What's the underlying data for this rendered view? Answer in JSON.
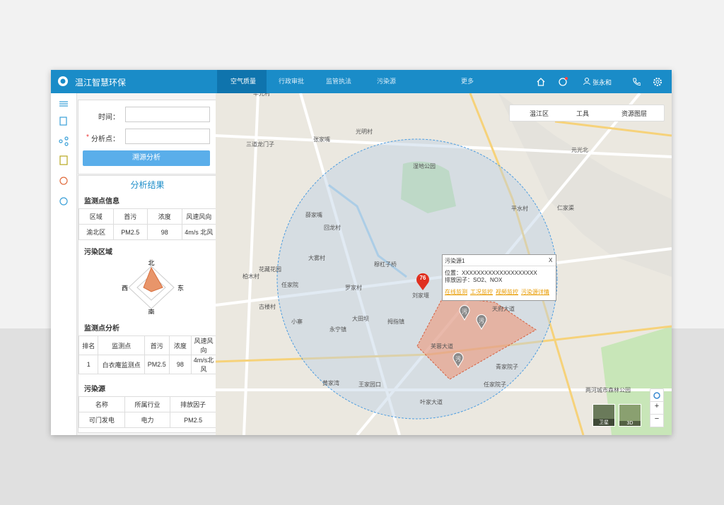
{
  "header": {
    "title": "温江智慧环保",
    "nav": [
      "空气质量",
      "行政审批",
      "监管执法",
      "污染源",
      "更多"
    ],
    "user": "张永和"
  },
  "form": {
    "time_label": "时间：",
    "required_mark": "*",
    "point_label": "分析点：",
    "button": "溯源分析"
  },
  "results": {
    "title": "分析结果",
    "station_info": {
      "title": "监测点信息",
      "columns": [
        "区域",
        "首污",
        "浓度",
        "风速风向"
      ],
      "rows": [
        [
          "渝北区",
          "PM2.5",
          "98",
          "4m/s 北风"
        ]
      ]
    },
    "area": {
      "title": "污染区域",
      "north": "北",
      "east": "东",
      "south": "南",
      "west": "西"
    },
    "station_analysis": {
      "title": "监测点分析",
      "columns": [
        "排名",
        "监测点",
        "首污",
        "浓度",
        "风速风向"
      ],
      "rows": [
        [
          "1",
          "白衣庵监测点",
          "PM2.5",
          "98",
          "4m/s北风"
        ]
      ]
    },
    "sources": {
      "title": "污染源",
      "columns": [
        "名称",
        "所属行业",
        "排放因子"
      ],
      "rows": [
        [
          "可门发电",
          "电力",
          "PM2.5"
        ]
      ]
    }
  },
  "map": {
    "toolbar": [
      "温江区",
      "工具",
      "资源图层"
    ],
    "marker": "76",
    "source_pins": [
      "污",
      "污",
      "污"
    ],
    "popup": {
      "title": "污染源1",
      "close": "X",
      "location": "位置：XXXXXXXXXXXXXXXXXXXX",
      "factor": "排放因子：SO2、NOX",
      "links": [
        "在线监测",
        "工况监控",
        "视频监控",
        "污染源详情"
      ]
    },
    "layers": [
      "卫星",
      "3D"
    ],
    "zoom": [
      "+",
      "−"
    ],
    "labels": [
      "华光村",
      "三道龙门子",
      "张家嘴",
      "光明村",
      "湿地公园",
      "薛家嘴",
      "回龙村",
      "大雾村",
      "穆杠子桥",
      "罗家村",
      "刘家堰",
      "任家院",
      "花藏花园",
      "柏木村",
      "古楼村",
      "小寨",
      "永宁镇",
      "大田坝",
      "拇指镇",
      "王家园口",
      "黄家湾",
      "叶家大道",
      "任家院子",
      "青家院子",
      "平水村",
      "仁家渠",
      "元光北",
      "两河城市森林公园",
      "芙蓉大道",
      "天府大道"
    ]
  }
}
